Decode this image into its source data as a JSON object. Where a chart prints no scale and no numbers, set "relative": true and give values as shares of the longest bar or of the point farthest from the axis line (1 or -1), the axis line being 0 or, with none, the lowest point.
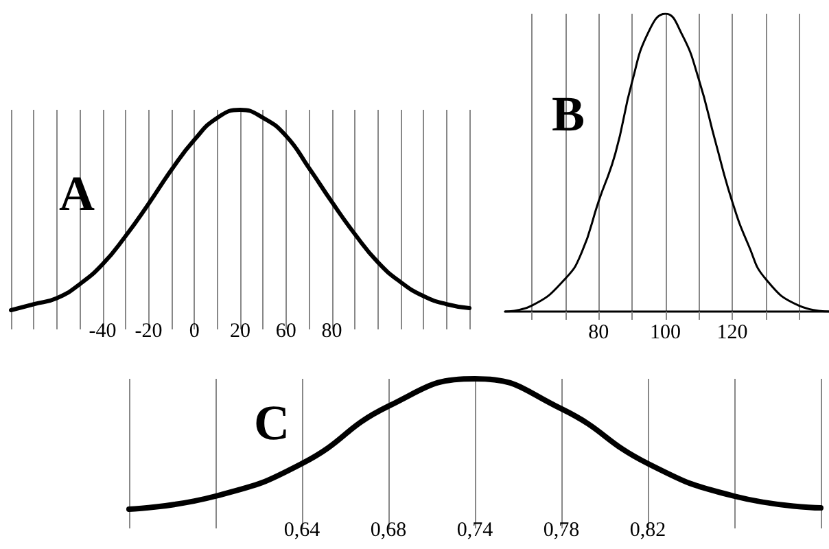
{
  "chart_data": [
    {
      "type": "line",
      "title": "A",
      "relative": true,
      "grid": "x",
      "marker": "none",
      "line_style": "solid",
      "categories": [
        null,
        null,
        null,
        null,
        "-40",
        null,
        "-20",
        null,
        "0",
        null,
        "20",
        null,
        "60",
        null,
        "80",
        null,
        null,
        null,
        null,
        null,
        null
      ],
      "series": [
        {
          "color": "#000000",
          "values": [
            0,
            0.03,
            0.06,
            0.13,
            0.23,
            0.37,
            0.53,
            0.7,
            0.85,
            0.96,
            1,
            0.96,
            0.87,
            0.71,
            0.54,
            0.38,
            0.24,
            0.14,
            0.07,
            0.03,
            0.01
          ]
        }
      ]
    },
    {
      "type": "line",
      "title": "B",
      "relative": true,
      "grid": "x",
      "marker": "none",
      "line_style": "solid",
      "xlim": [
        52,
        149
      ],
      "xticks": [
        {
          "value": 60,
          "label": null
        },
        {
          "value": 70,
          "label": null
        },
        80,
        {
          "value": 90,
          "label": null
        },
        100,
        {
          "value": 110,
          "label": null
        },
        120,
        {
          "value": 130,
          "label": null
        },
        {
          "value": 140,
          "label": null
        }
      ],
      "series": [
        {
          "color": "#000000",
          "x": [
            52,
            60,
            70,
            75,
            80,
            85,
            90,
            95,
            100,
            105,
            110,
            115,
            120,
            125,
            130,
            140,
            149
          ],
          "values": [
            0,
            0.02,
            0.11,
            0.2,
            0.37,
            0.53,
            0.77,
            0.94,
            1,
            0.93,
            0.78,
            0.57,
            0.37,
            0.22,
            0.11,
            0.02,
            0
          ]
        }
      ]
    },
    {
      "type": "line",
      "title": "C",
      "relative": true,
      "grid": "x",
      "marker": "none",
      "line_style": "solid",
      "categories": [
        null,
        null,
        "0,64",
        "0,68",
        "0,74",
        "0,78",
        "0,82",
        null,
        null
      ],
      "series": [
        {
          "color": "#000000",
          "values": [
            0,
            0.1,
            0.35,
            0.79,
            1,
            0.77,
            0.35,
            0.1,
            0.01
          ]
        }
      ]
    }
  ]
}
